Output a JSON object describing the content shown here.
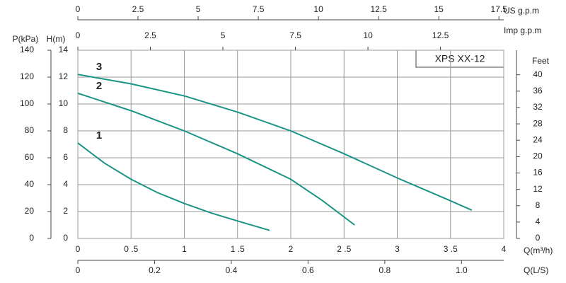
{
  "chart_data": {
    "type": "line",
    "model": "XPS   XX-12",
    "xlabel": "Q(m³/h)",
    "ylabel": "H(m)",
    "xlim": [
      0,
      4
    ],
    "xticks": [
      0,
      {
        "value": 0.5,
        "label": "0 .5"
      },
      1,
      {
        "value": 1.5,
        "label": "1 .5"
      },
      2,
      {
        "value": 2.5,
        "label": "2 .5"
      },
      3,
      {
        "value": 3.5,
        "label": "3 .5"
      },
      4
    ],
    "ylim": [
      0,
      14
    ],
    "yticks": [
      0,
      2,
      4,
      6,
      8,
      10,
      12,
      14
    ],
    "grid": true,
    "series": [
      {
        "name": "1",
        "color": "#1a9484",
        "x": [
          0,
          0.25,
          0.5,
          0.75,
          1,
          1.25,
          1.5,
          1.8
        ],
        "values": [
          7.1,
          5.6,
          4.4,
          3.4,
          2.6,
          1.9,
          1.3,
          0.6
        ]
      },
      {
        "name": "2",
        "color": "#1a9484",
        "x": [
          0,
          0.5,
          1,
          1.5,
          2,
          2.3,
          2.6
        ],
        "values": [
          10.8,
          9.5,
          8.0,
          6.3,
          4.4,
          2.8,
          1.0
        ]
      },
      {
        "name": "3",
        "color": "#1a9484",
        "x": [
          0,
          0.5,
          1,
          1.5,
          2,
          2.5,
          3,
          3.5,
          3.7
        ],
        "values": [
          12.2,
          11.5,
          10.6,
          9.4,
          8.0,
          6.3,
          4.5,
          2.8,
          2.1
        ]
      }
    ],
    "extra_axes": [
      {
        "side": "top",
        "label": "US  g.p.m",
        "lim": [
          0,
          17.7
        ],
        "ticks": [
          0,
          2.5,
          5,
          7.5,
          10,
          12.5,
          15,
          17.5
        ]
      },
      {
        "side": "top-inner",
        "label": "Imp  g.p.m",
        "lim": [
          0,
          14.68
        ],
        "ticks": [
          0,
          2.5,
          5,
          7.5,
          10,
          12.5
        ]
      },
      {
        "side": "bottom",
        "label": "Q(L/S)",
        "lim": [
          0,
          1.11
        ],
        "ticks": [
          0,
          0.2,
          0.4,
          0.6,
          0.8,
          {
            "value": 1,
            "label": "1.0"
          }
        ]
      },
      {
        "side": "left",
        "label": "P(kPa)",
        "lim": [
          0,
          140
        ],
        "ticks": [
          0,
          20,
          40,
          60,
          80,
          100,
          120,
          140
        ]
      },
      {
        "side": "right",
        "label": "Feet",
        "lim": [
          0,
          46
        ],
        "ticks": [
          0,
          4,
          8,
          12,
          16,
          20,
          24,
          28,
          32,
          36,
          40
        ]
      }
    ]
  }
}
